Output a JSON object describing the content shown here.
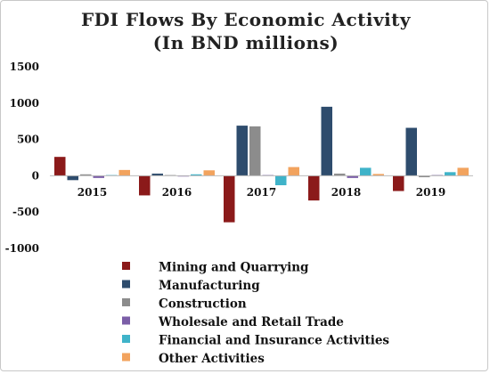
{
  "chart_data": {
    "type": "bar",
    "title": "FDI Flows By Economic Activity",
    "subtitle": "(In BND millions)",
    "categories": [
      "2015",
      "2016",
      "2017",
      "2018",
      "2019"
    ],
    "ylim": [
      -1000,
      1500
    ],
    "yticks": [
      1500,
      1000,
      500,
      0,
      -500,
      -1000
    ],
    "ytick_labels": [
      "1500",
      "1000",
      "500",
      "0",
      "-500",
      "-1000"
    ],
    "grid": false,
    "legend_position": "bottom",
    "series": [
      {
        "name": "Mining and Quarrying",
        "color": "#8B1A1A",
        "values": [
          260,
          -270,
          -640,
          -340,
          -210
        ]
      },
      {
        "name": "Manufacturing",
        "color": "#2E4C6D",
        "values": [
          -60,
          30,
          690,
          950,
          660
        ]
      },
      {
        "name": "Construction",
        "color": "#8C8C8C",
        "values": [
          20,
          10,
          680,
          30,
          -20
        ]
      },
      {
        "name": "Wholesale and Retail Trade",
        "color": "#7B5EA7",
        "values": [
          -30,
          -10,
          10,
          -30,
          10
        ]
      },
      {
        "name": "Financial and Insurance Activities",
        "color": "#3FB3C9",
        "values": [
          10,
          20,
          -130,
          110,
          50
        ]
      },
      {
        "name": "Other Activities",
        "color": "#F2A35E",
        "values": [
          80,
          75,
          120,
          25,
          110
        ]
      }
    ]
  }
}
